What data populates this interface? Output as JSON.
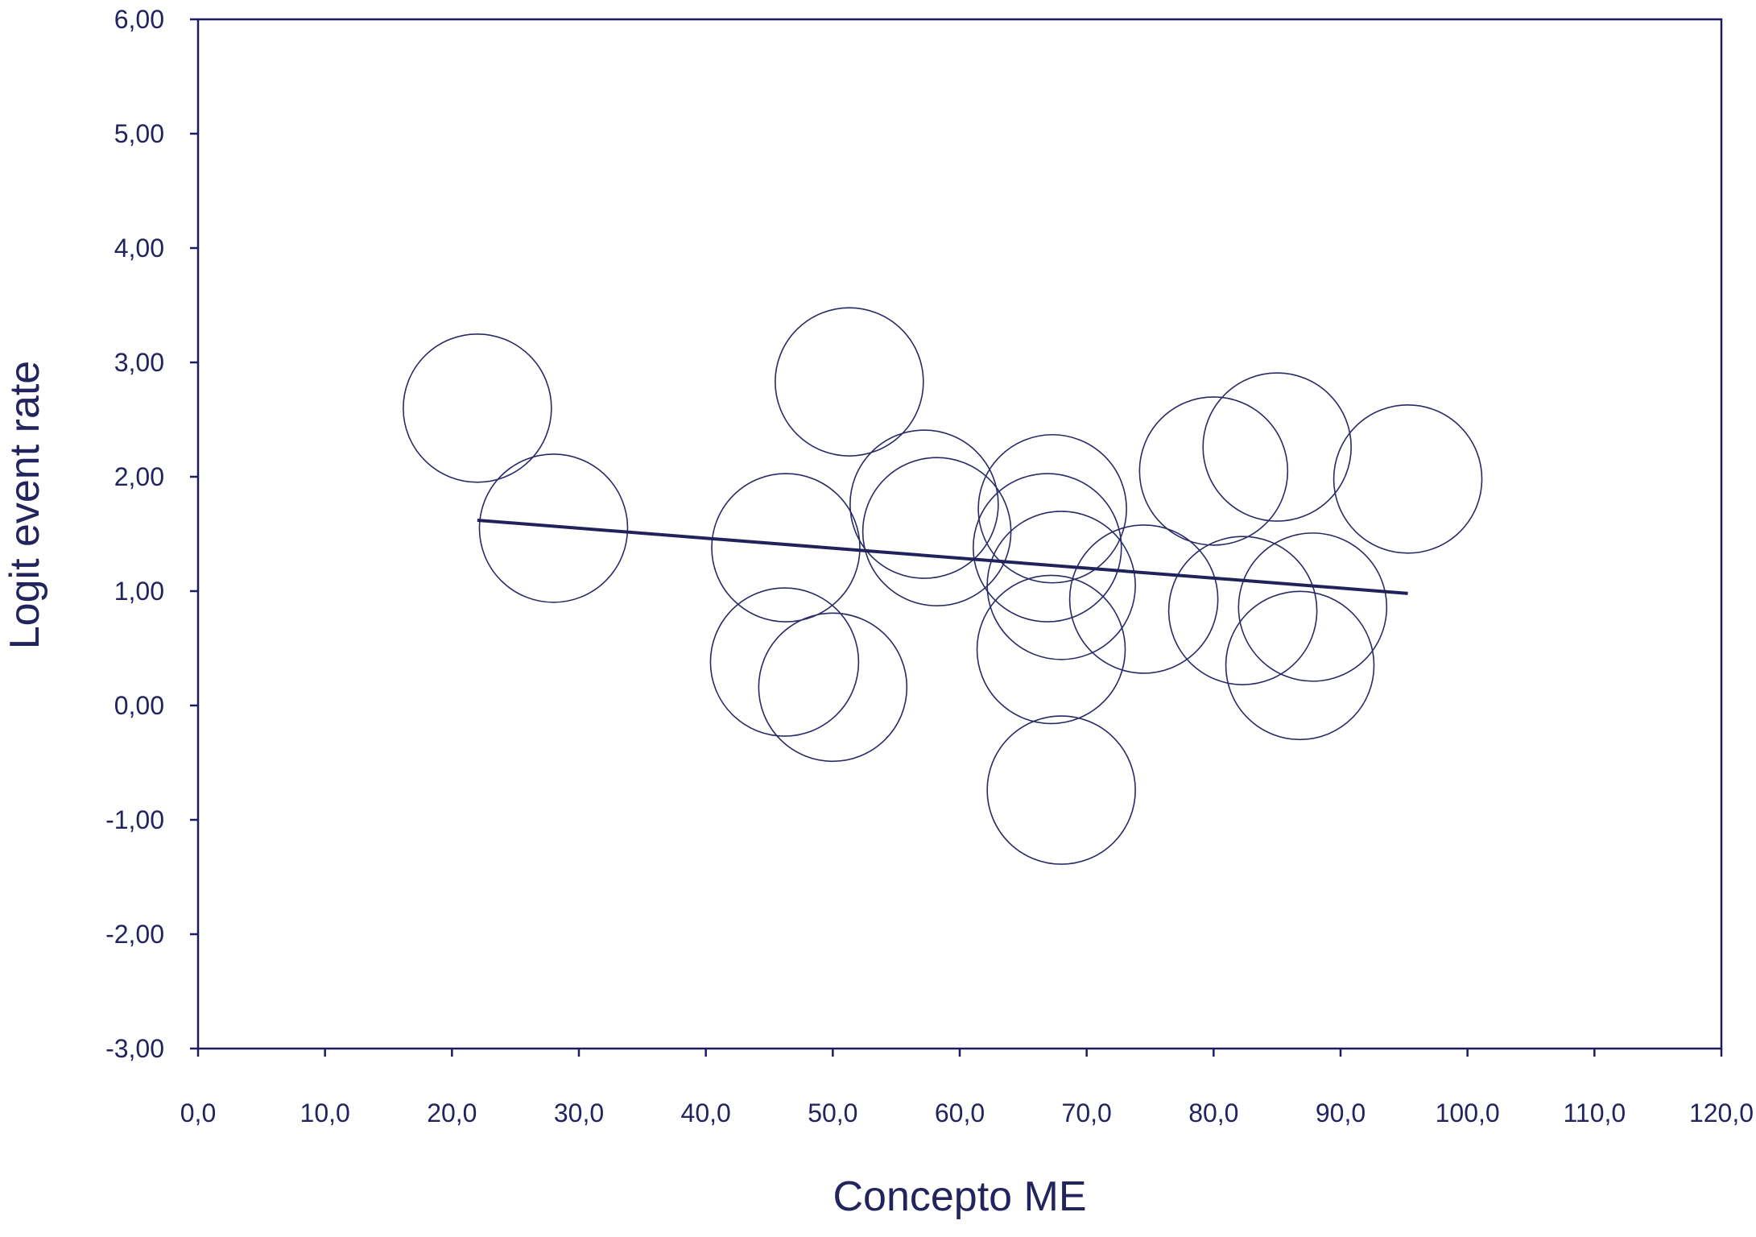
{
  "chart_data": {
    "type": "scatter",
    "title": "",
    "xlabel": "Concepto ME",
    "ylabel": "Logit event rate",
    "xlim": [
      0,
      120
    ],
    "ylim": [
      -3,
      6
    ],
    "x_ticks": [
      0,
      10,
      20,
      30,
      40,
      50,
      60,
      70,
      80,
      90,
      100,
      110,
      120
    ],
    "y_ticks": [
      -3,
      -2,
      -1,
      0,
      1,
      2,
      3,
      4,
      5,
      6
    ],
    "x_tick_labels": [
      "0,0",
      "10,0",
      "20,0",
      "30,0",
      "40,0",
      "50,0",
      "60,0",
      "70,0",
      "80,0",
      "90,0",
      "100,0",
      "110,0",
      "120,0"
    ],
    "y_tick_labels": [
      "-3,00",
      "-2,00",
      "-1,00",
      "0,00",
      "1,00",
      "2,00",
      "3,00",
      "4,00",
      "5,00",
      "6,00"
    ],
    "grid": false,
    "legend": "none",
    "points": [
      {
        "x": 22.0,
        "y": 2.6
      },
      {
        "x": 28.0,
        "y": 1.55
      },
      {
        "x": 51.3,
        "y": 2.83
      },
      {
        "x": 46.3,
        "y": 1.38
      },
      {
        "x": 46.2,
        "y": 0.38
      },
      {
        "x": 50.0,
        "y": 0.16
      },
      {
        "x": 57.2,
        "y": 1.76
      },
      {
        "x": 58.2,
        "y": 1.52
      },
      {
        "x": 67.3,
        "y": 1.72
      },
      {
        "x": 66.9,
        "y": 1.38
      },
      {
        "x": 68.0,
        "y": 1.05
      },
      {
        "x": 67.2,
        "y": 0.49
      },
      {
        "x": 68.0,
        "y": -0.74
      },
      {
        "x": 74.5,
        "y": 0.93
      },
      {
        "x": 80.0,
        "y": 2.05
      },
      {
        "x": 85.0,
        "y": 2.26
      },
      {
        "x": 82.3,
        "y": 0.83
      },
      {
        "x": 86.8,
        "y": 0.35
      },
      {
        "x": 87.8,
        "y": 0.86
      },
      {
        "x": 95.3,
        "y": 1.98
      }
    ],
    "regression_line": {
      "x": [
        22.0,
        95.3
      ],
      "y": [
        1.62,
        0.98
      ]
    },
    "colors": {
      "axis": "#1c1c5e",
      "text": "#23235e",
      "bubble": "#2a2a66",
      "line": "#22225a"
    }
  }
}
